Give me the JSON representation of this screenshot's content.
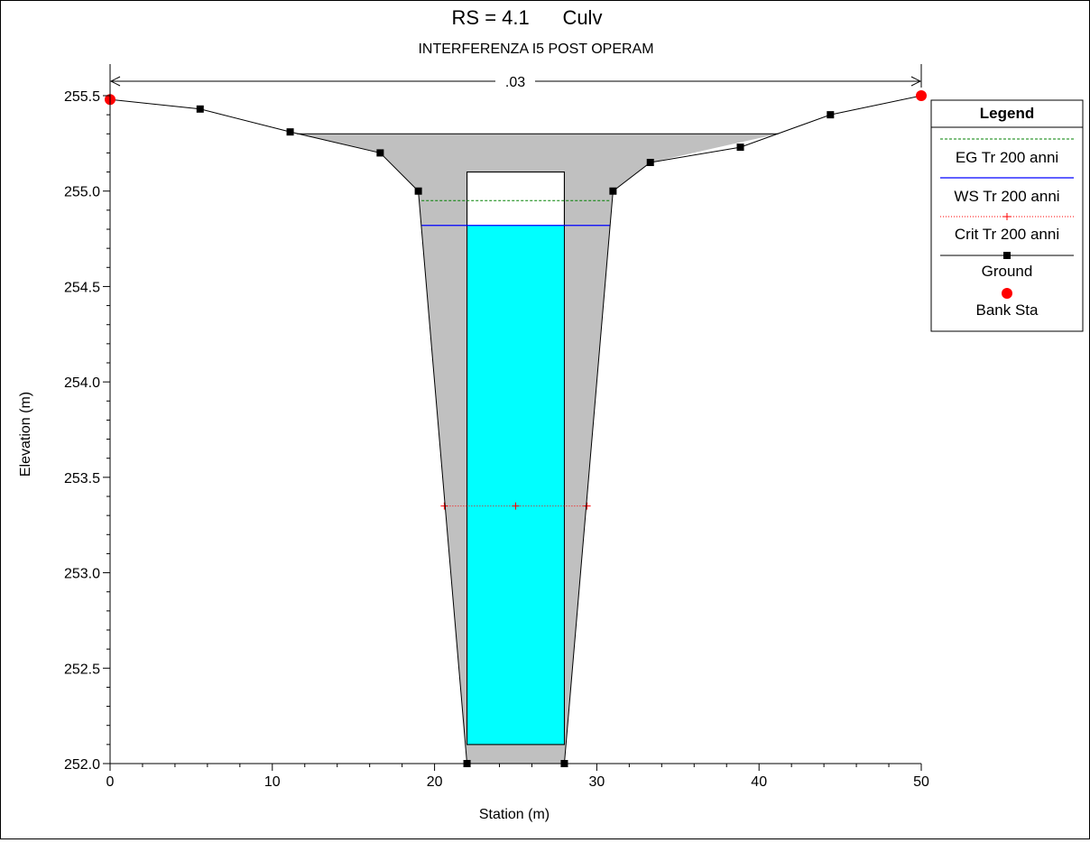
{
  "chart_data": {
    "type": "line",
    "title": "RS = 4.1      Culv",
    "subtitle": "INTERFERENZA I5 POST OPERAM",
    "xlabel": "Station (m)",
    "ylabel": "Elevation (m)",
    "xlim": [
      0,
      50
    ],
    "ylim": [
      252.0,
      255.6
    ],
    "x_ticks": [
      "0",
      "10",
      "20",
      "30",
      "40",
      "50"
    ],
    "y_ticks": [
      "252.0",
      "252.5",
      "253.0",
      "253.5",
      "254.0",
      "254.5",
      "255.0",
      "255.5"
    ],
    "manning_label": ".03",
    "ground": {
      "name": "Ground",
      "x": [
        0,
        5.55,
        11.1,
        16.65,
        19.0,
        22.0,
        28.0,
        31.0,
        33.3,
        38.85,
        44.4,
        50.0
      ],
      "y": [
        255.48,
        255.43,
        255.31,
        255.2,
        255.0,
        252.0,
        252.0,
        255.0,
        255.15,
        255.23,
        255.4,
        255.5
      ]
    },
    "bank_stations": {
      "name": "Bank Sta",
      "x": [
        0,
        50
      ],
      "y": [
        255.48,
        255.5
      ]
    },
    "road_deck": {
      "x": [
        11.5,
        41.2
      ],
      "top": 255.3
    },
    "culvert": {
      "x": [
        22.0,
        28.0
      ],
      "invert": 252.1,
      "soffit": 255.1
    },
    "water": {
      "x": [
        22.0,
        28.0
      ],
      "bottom": 252.1
    },
    "eg": {
      "name": "EG Tr 200 anni",
      "elevation": 254.95,
      "x": [
        19.2,
        30.8
      ],
      "color": "#008000"
    },
    "ws": {
      "name": "WS Tr 200 anni",
      "elevation": 254.82,
      "x": [
        19.2,
        30.8
      ],
      "color": "#0000ff"
    },
    "crit": {
      "name": "Crit Tr 200 anni",
      "elevation": 253.35,
      "x": [
        20.6,
        29.4
      ],
      "marker_x": [
        20.6,
        25.0,
        29.4
      ],
      "color": "#ff0000"
    },
    "legend": {
      "title": "Legend",
      "placement": "right",
      "entries": [
        "EG Tr 200 anni",
        "WS Tr 200 anni",
        "Crit Tr 200 anni",
        "Ground",
        "Bank Sta"
      ]
    },
    "colors": {
      "fill": "#c0c0c0",
      "water": "#00ffff",
      "ground": "#000000",
      "bank": "#ff0000"
    }
  }
}
